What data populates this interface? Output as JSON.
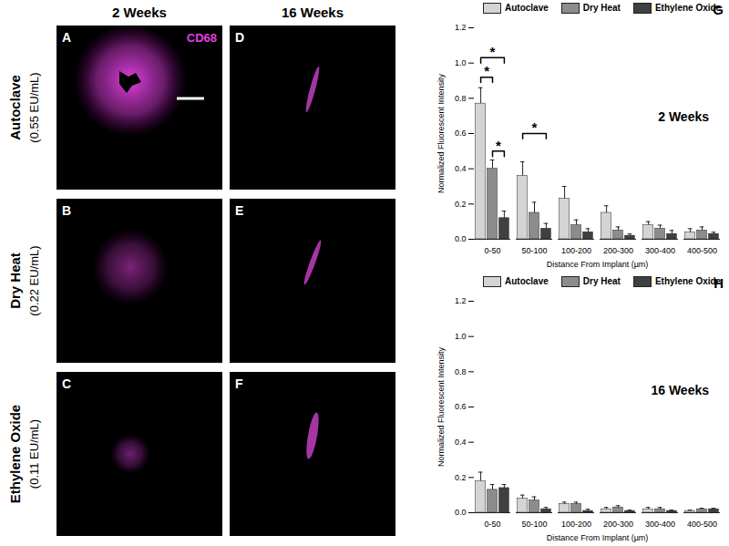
{
  "panels": {
    "columns": [
      "2 Weeks",
      "16 Weeks"
    ],
    "stain": "CD68",
    "rows": [
      {
        "label": "Autoclave",
        "sublabel": "(0.55 EU/mL)",
        "letters": [
          "A",
          "D"
        ]
      },
      {
        "label": "Dry Heat",
        "sublabel": "(0.22 EU/mL)",
        "letters": [
          "B",
          "E"
        ]
      },
      {
        "label": "Ethylene Oxide",
        "sublabel": "(0.11 EU/mL)",
        "letters": [
          "C",
          "F"
        ]
      }
    ]
  },
  "chart_data": [
    {
      "type": "bar",
      "panel": "G",
      "title": "2 Weeks",
      "xlabel": "Distance From Implant (µm)",
      "ylabel": "Normalized Fluorescent Intensity",
      "categories": [
        "0-50",
        "50-100",
        "100-200",
        "200-300",
        "300-400",
        "400-500"
      ],
      "series": [
        {
          "name": "Autoclave",
          "color": "#d4d4d4",
          "values": [
            0.77,
            0.36,
            0.23,
            0.15,
            0.08,
            0.04
          ],
          "errors": [
            0.09,
            0.08,
            0.07,
            0.04,
            0.02,
            0.02
          ]
        },
        {
          "name": "Dry Heat",
          "color": "#8c8c8c",
          "values": [
            0.4,
            0.15,
            0.08,
            0.05,
            0.06,
            0.05
          ],
          "errors": [
            0.05,
            0.06,
            0.03,
            0.02,
            0.02,
            0.02
          ]
        },
        {
          "name": "Ethylene Oxide",
          "color": "#404040",
          "values": [
            0.12,
            0.06,
            0.04,
            0.02,
            0.03,
            0.03
          ],
          "errors": [
            0.04,
            0.03,
            0.02,
            0.01,
            0.02,
            0.01
          ]
        }
      ],
      "ylim": [
        0,
        1.2
      ],
      "yticks": [
        {
          "value": 0,
          "label": "0.0"
        },
        0.2,
        0.4,
        0.6,
        0.8,
        {
          "value": 1,
          "label": "1.0"
        },
        1.2
      ],
      "legend": "top",
      "annotations": [
        {
          "text": "*",
          "category": "0-50",
          "from": "Autoclave",
          "to": "Dry Heat",
          "y": 0.92
        },
        {
          "text": "*",
          "category": "0-50",
          "from": "Autoclave",
          "to": "Ethylene Oxide",
          "y": 1.03
        },
        {
          "text": "*",
          "category": "0-50",
          "from": "Dry Heat",
          "to": "Ethylene Oxide",
          "y": 0.5
        },
        {
          "text": "*",
          "category": "50-100",
          "from": "Autoclave",
          "to": "Ethylene Oxide",
          "y": 0.6
        }
      ]
    },
    {
      "type": "bar",
      "panel": "H",
      "title": "16 Weeks",
      "xlabel": "Distance From Implant (µm)",
      "ylabel": "Normalized Fluorescent Intensity",
      "categories": [
        "0-50",
        "50-100",
        "100-200",
        "200-300",
        "300-400",
        "400-500"
      ],
      "series": [
        {
          "name": "Autoclave",
          "color": "#d4d4d4",
          "values": [
            0.18,
            0.08,
            0.05,
            0.02,
            0.02,
            0.01
          ],
          "errors": [
            0.05,
            0.02,
            0.01,
            0.01,
            0.01,
            0.005
          ]
        },
        {
          "name": "Dry Heat",
          "color": "#8c8c8c",
          "values": [
            0.13,
            0.07,
            0.05,
            0.03,
            0.02,
            0.02
          ],
          "errors": [
            0.03,
            0.02,
            0.01,
            0.01,
            0.01,
            0.005
          ]
        },
        {
          "name": "Ethylene Oxide",
          "color": "#404040",
          "values": [
            0.14,
            0.02,
            0.01,
            0.01,
            0.01,
            0.02
          ],
          "errors": [
            0.02,
            0.01,
            0.01,
            0.005,
            0.005,
            0.005
          ]
        }
      ],
      "ylim": [
        0,
        1.2
      ],
      "yticks": [
        {
          "value": 0,
          "label": "0.0"
        },
        0.2,
        0.4,
        0.6,
        0.8,
        {
          "value": 1,
          "label": "1.0"
        },
        1.2
      ],
      "legend": "top"
    }
  ]
}
